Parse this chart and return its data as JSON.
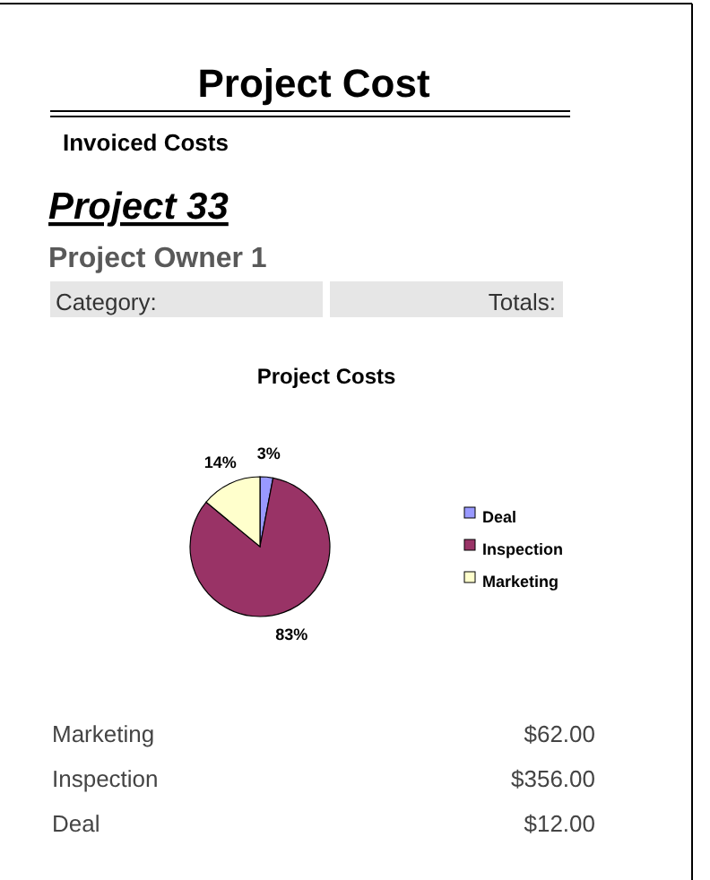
{
  "chart_data": {
    "type": "pie",
    "title": "Project Costs",
    "categories": [
      "Deal",
      "Inspection",
      "Marketing"
    ],
    "values": [
      3,
      83,
      14
    ],
    "colors": [
      "#9999ff",
      "#993366",
      "#ffffcc"
    ],
    "value_labels": [
      "3%",
      "83%",
      "14%"
    ],
    "legend": "right",
    "annotations": [
      "Project Cost",
      "Invoiced Costs",
      "Project 33",
      "Project Owner 1",
      "Category:",
      "Totals:",
      "Marketing",
      "$62.00",
      "Inspection",
      "$356.00",
      "Deal",
      "$12.00"
    ]
  }
}
